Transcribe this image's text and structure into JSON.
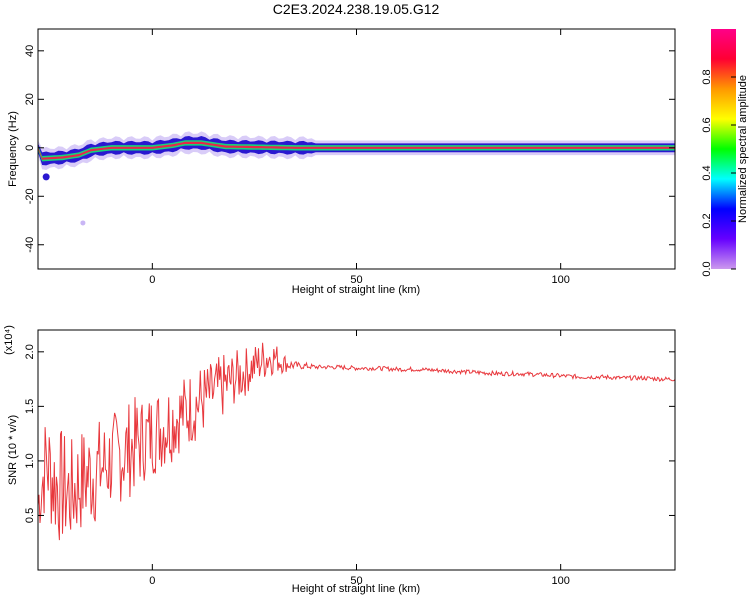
{
  "title": "C2E3.2024.238.19.05.G12",
  "colors": {
    "snr_line": "#e8383d",
    "spec_core": "#e8264a",
    "spec_mid": "#18d27a",
    "spec_edge": "#2a18d0",
    "spec_halo": "#c9b6f5"
  },
  "chart_data": [
    {
      "type": "heatmap",
      "title": "C2E3.2024.238.19.05.G12",
      "xlabel": "Height of straight line (km)",
      "ylabel": "Frequency (Hz)",
      "xlim": [
        -28,
        128
      ],
      "ylim": [
        -50,
        49
      ],
      "x_ticks": [
        "0",
        "50",
        "100"
      ],
      "y_ticks": [
        "-40",
        "-20",
        "0",
        "20",
        "40"
      ],
      "colorbar": {
        "label": "Normalized spectral amplitude",
        "range": [
          0.0,
          1.0
        ],
        "ticks": [
          "0.0",
          "0.2",
          "0.4",
          "0.6",
          "0.8"
        ],
        "colormap": [
          "#cc99ee",
          "#6600ff",
          "#0000ff",
          "#00ffff",
          "#00ff00",
          "#ffff00",
          "#ff9900",
          "#ff0033",
          "#ff0088"
        ]
      },
      "ridge": {
        "note_values": "frequency centre (Hz) of the dominant amplitude band vs height (km)",
        "x": [
          -27,
          -22,
          -18,
          -15,
          -10,
          -5,
          0,
          5,
          8,
          12,
          18,
          25,
          35,
          50,
          128
        ],
        "y": [
          -4.5,
          -4,
          -3,
          -1,
          0,
          0,
          0,
          1,
          2,
          2,
          0.5,
          0.3,
          0,
          0,
          0
        ]
      },
      "outliers": [
        {
          "x": -26,
          "y": -12,
          "amplitude": 0.15
        },
        {
          "x": -17,
          "y": -31,
          "amplitude": 0.1
        }
      ]
    },
    {
      "type": "line",
      "xlabel": "Height of straight line (km)",
      "ylabel": "SNR (10 * v/v)",
      "y_multiplier": "(x10⁴)",
      "xlim": [
        -28,
        128
      ],
      "ylim": [
        0,
        2.2
      ],
      "x_ticks": [
        "0",
        "50",
        "100"
      ],
      "y_ticks": [
        "0.5",
        "1.0",
        "1.5",
        "2.0"
      ],
      "series": [
        {
          "x": [
            -28,
            -26,
            -24,
            -22,
            -20,
            -18,
            -16,
            -14,
            -12,
            -10,
            -8,
            -6,
            -4,
            -2,
            0,
            2,
            4,
            6,
            8,
            10,
            12,
            14,
            16,
            18,
            20,
            22,
            24,
            26,
            28,
            30,
            32,
            34,
            36,
            38,
            40,
            45,
            50,
            55,
            60,
            65,
            70,
            75,
            80,
            85,
            90,
            95,
            100,
            105,
            110,
            115,
            120,
            125,
            128
          ],
          "y": [
            0.6,
            1.0,
            0.8,
            0.75,
            0.7,
            0.8,
            0.85,
            0.9,
            0.95,
            1.0,
            1.05,
            1.1,
            1.15,
            1.2,
            1.25,
            1.3,
            1.35,
            1.4,
            1.45,
            1.5,
            1.55,
            1.6,
            1.65,
            1.7,
            1.75,
            1.8,
            1.85,
            1.9,
            1.95,
            1.95,
            1.9,
            1.88,
            1.87,
            1.87,
            1.86,
            1.86,
            1.85,
            1.85,
            1.84,
            1.84,
            1.83,
            1.82,
            1.81,
            1.8,
            1.8,
            1.79,
            1.78,
            1.77,
            1.77,
            1.76,
            1.76,
            1.75,
            1.75
          ],
          "spread": [
            0.3,
            0.5,
            0.55,
            0.55,
            0.5,
            0.5,
            0.5,
            0.5,
            0.45,
            0.45,
            0.45,
            0.45,
            0.45,
            0.4,
            0.4,
            0.4,
            0.4,
            0.35,
            0.35,
            0.35,
            0.35,
            0.3,
            0.3,
            0.3,
            0.25,
            0.25,
            0.2,
            0.2,
            0.2,
            0.15,
            0.1,
            0.05,
            0.03,
            0.03,
            0.02,
            0.02,
            0.02,
            0.02,
            0.02,
            0.02,
            0.02,
            0.02,
            0.02,
            0.02,
            0.02,
            0.02,
            0.02,
            0.02,
            0.02,
            0.02,
            0.02,
            0.02,
            0.02
          ]
        }
      ]
    }
  ]
}
